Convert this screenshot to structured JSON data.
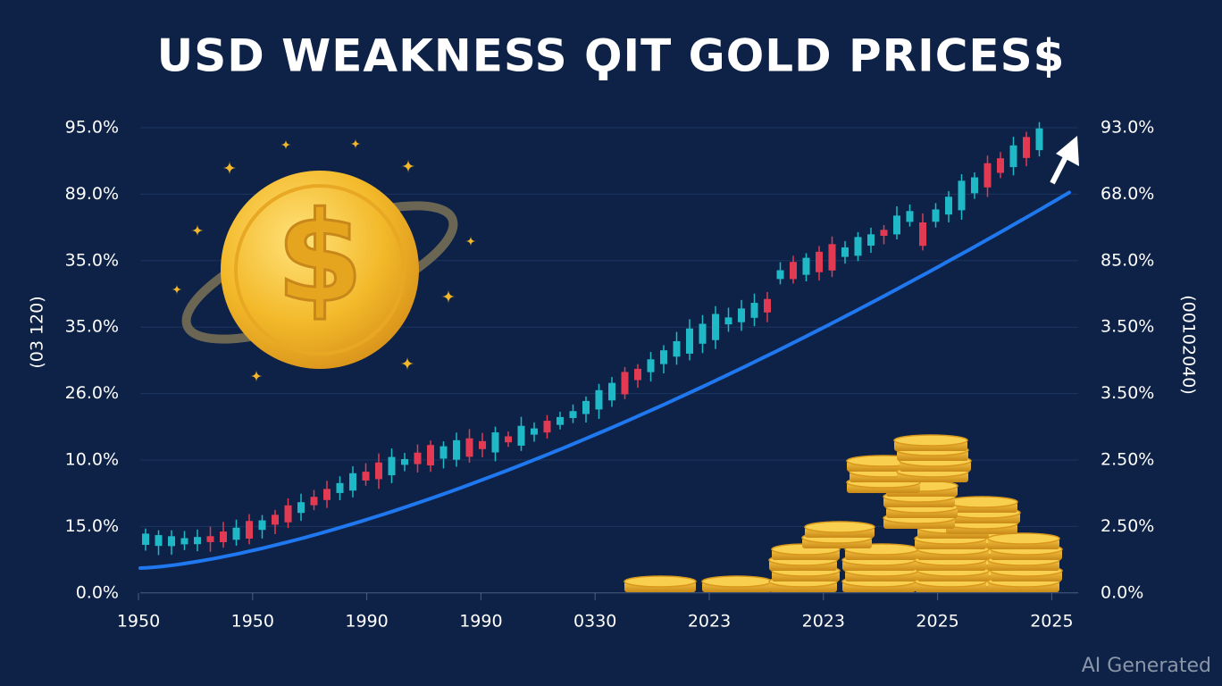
{
  "title": "USD WEAKNESS ϘIT GOLD PRICES$",
  "left_axis_labels": [
    "95.0%",
    "89.0%",
    "35.0%",
    "35.0%",
    "26.0%",
    "10.0%",
    "15.0%",
    "0.0%"
  ],
  "right_axis_labels": [
    "93.0%",
    "68.0%",
    "85.0%",
    "3.50%",
    "3.50%",
    "2.50%",
    "2.50%",
    "0.0%"
  ],
  "left_side_label": "(03 120)",
  "right_side_label": "(00102040)",
  "x_axis_labels": [
    "1950",
    "1950",
    "1990",
    "1990",
    "0330",
    "2023",
    "2023",
    "2025",
    "2025"
  ],
  "watermark": "AI Generated"
}
